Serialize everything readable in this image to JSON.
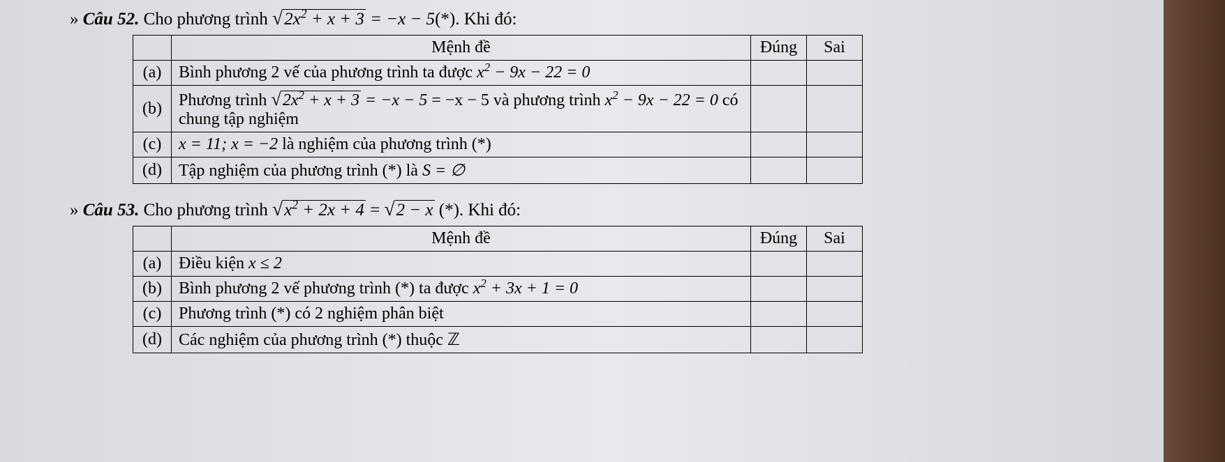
{
  "q52": {
    "prefix_arrow": "»",
    "label": "Câu 52.",
    "intro_pre": "Cho phương trình ",
    "sqrt_content": "2x² + x + 3",
    "intro_mid": " = −x − 5",
    "star": "(*)",
    "intro_post": ". Khi đó:",
    "header_statement": "Mệnh đề",
    "header_true": "Đúng",
    "header_false": "Sai",
    "rows": [
      {
        "letter": "(a)",
        "text_pre": "Bình phương 2 vế của phương trình ta được ",
        "math": "x² − 9x − 22 = 0",
        "text_post": ""
      },
      {
        "letter": "(b)",
        "text_pre": "Phương trình ",
        "sqrt_content": "2x² + x + 3",
        "text_mid": " = −x − 5 và phương trình ",
        "math2": "x² − 9x − 22 = 0",
        "text_post": " có chung tập nghiệm"
      },
      {
        "letter": "(c)",
        "text_pre": "",
        "math": "x = 11; x = −2",
        "text_post": " là nghiệm của phương trình (*)"
      },
      {
        "letter": "(d)",
        "text_pre": "Tập nghiệm của phương trình (*) là ",
        "math": "S = ∅",
        "text_post": ""
      }
    ]
  },
  "q53": {
    "prefix_arrow": "»",
    "label": "Câu 53.",
    "intro_pre": "Cho phương trình ",
    "sqrt1_content": "x² + 2x + 4",
    "intro_eq": " = ",
    "sqrt2_content": "2 − x",
    "star": " (*)",
    "intro_post": ". Khi đó:",
    "header_statement": "Mệnh đề",
    "header_true": "Đúng",
    "header_false": "Sai",
    "rows": [
      {
        "letter": "(a)",
        "text_pre": "Điều kiện ",
        "math": "x ≤ 2",
        "text_post": ""
      },
      {
        "letter": "(b)",
        "text_pre": "Bình phương 2 vế phương trình (*) ta được ",
        "math": "x² + 3x + 1 = 0",
        "text_post": ""
      },
      {
        "letter": "(c)",
        "text_pre": "Phương trình (*) có 2 nghiệm phân biệt",
        "math": "",
        "text_post": ""
      },
      {
        "letter": "(d)",
        "text_pre": "Các nghiệm của phương trình (*) thuộc ",
        "math": "ℤ",
        "text_post": ""
      }
    ]
  },
  "style": {
    "text_color": "#000000",
    "bg_color": "#e2e3e8",
    "border_color": "#000000",
    "font_size_body": 24,
    "font_size_title": 25,
    "font_family": "Times New Roman",
    "table_col_widths": {
      "letter": 55,
      "statement": 830,
      "check": 80
    }
  }
}
